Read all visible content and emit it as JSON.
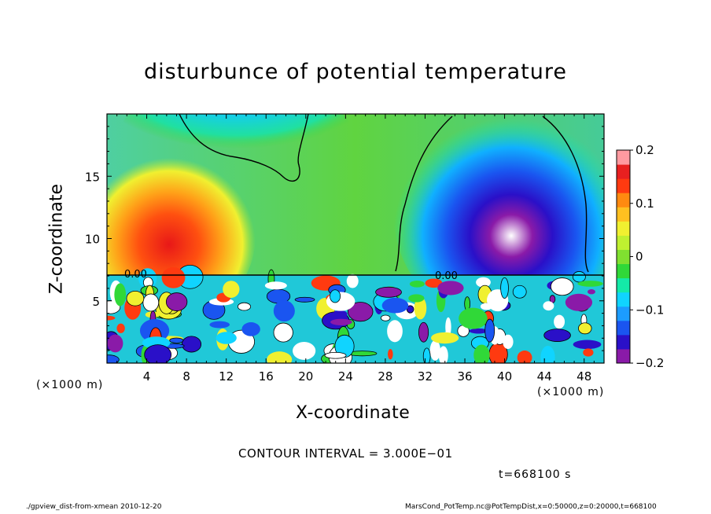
{
  "chart_data": {
    "type": "heatmap",
    "title": "disturbunce of potential temperature",
    "xlabel": "X-coordinate",
    "ylabel": "Z-coordinate",
    "x_unit_left": "(×1000 m)",
    "x_unit_right": "(×1000 m)",
    "xlim": [
      0,
      50
    ],
    "ylim": [
      0,
      20
    ],
    "x_ticks": [
      4,
      8,
      12,
      16,
      20,
      24,
      28,
      32,
      36,
      40,
      44,
      48
    ],
    "x_tick_labels": [
      "4",
      "8",
      "12",
      "16",
      "20",
      "24",
      "28",
      "32",
      "36",
      "40",
      "44",
      "48"
    ],
    "y_ticks": [
      5,
      10,
      15
    ],
    "y_tick_labels": [
      "5",
      "10",
      "15"
    ],
    "colorbar": {
      "range": [
        -0.2,
        0.2
      ],
      "ticks": [
        0.2,
        0.1,
        0,
        -0.1,
        -0.2
      ],
      "tick_labels": [
        "0.2",
        "0.1",
        "0",
        "−0.1",
        "−0.2"
      ],
      "colors": [
        "#8a1aa8",
        "#2a10c8",
        "#1a55f0",
        "#1c9cff",
        "#10d4ff",
        "#14eaa8",
        "#30d838",
        "#80e030",
        "#bff030",
        "#f0f030",
        "#ffc020",
        "#ff8a10",
        "#ff3a10",
        "#e82020",
        "#ff9aa0"
      ]
    },
    "contour_labels": [
      "0.00",
      "0.00"
    ],
    "contour_interval_text": "CONTOUR INTERVAL = 3.000E−01",
    "time_text": "t=668100 s",
    "grid": false,
    "legend": "colorbar at right"
  },
  "footer": {
    "left": "./gpview_dist-from-xmean  2010-12-20",
    "right": "MarsCond_PotTemp.nc@PotTempDist,x=0:50000,z=0:20000,t=668100"
  }
}
